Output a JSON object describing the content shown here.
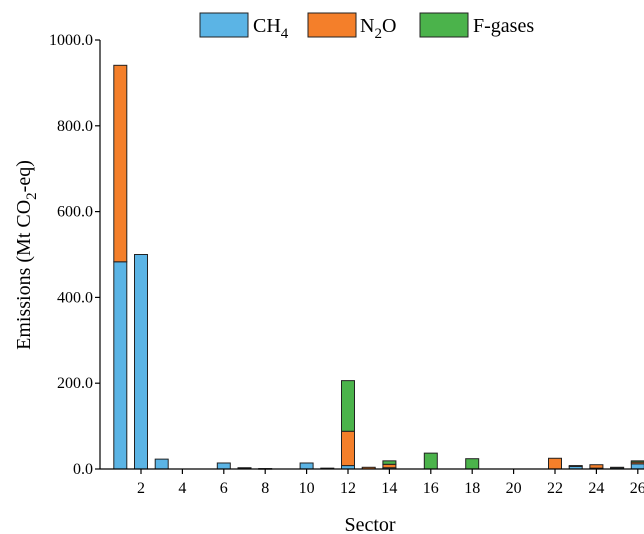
{
  "chart_data": {
    "type": "bar",
    "stacked": true,
    "title": "",
    "xlabel": "Sector",
    "ylabel_parts": [
      "Emissions (Mt CO",
      "2",
      "-eq)"
    ],
    "ylim": [
      0,
      1000
    ],
    "yticks": [
      0,
      200,
      400,
      600,
      800,
      1000
    ],
    "ytick_labels": [
      "0.0",
      "200.0",
      "400.0",
      "600.0",
      "800.0",
      "1000.0"
    ],
    "x_tick_labels": [
      "2",
      "4",
      "6",
      "8",
      "10",
      "12",
      "14",
      "16",
      "18",
      "20",
      "22",
      "24",
      "26"
    ],
    "categories": [
      1,
      2,
      3,
      4,
      5,
      6,
      7,
      8,
      9,
      10,
      11,
      12,
      13,
      14,
      15,
      16,
      17,
      18,
      19,
      20,
      21,
      22,
      23,
      24,
      25,
      26
    ],
    "legend_position": "top",
    "series": [
      {
        "name_parts": [
          "CH",
          "4",
          ""
        ],
        "color": "#5bb4e5",
        "values": [
          483,
          500,
          23,
          0,
          0,
          14,
          2,
          1,
          0,
          14,
          0,
          8,
          0,
          3,
          0,
          0,
          0,
          0,
          0,
          0,
          0,
          0,
          6,
          2,
          3,
          12
        ]
      },
      {
        "name_parts": [
          "N",
          "2",
          "O"
        ],
        "color": "#f47f2a",
        "values": [
          458,
          0,
          0,
          0,
          0,
          0,
          1,
          0,
          0,
          0,
          2,
          80,
          4,
          8,
          0,
          0,
          0,
          0,
          0,
          0,
          0,
          25,
          2,
          8,
          1,
          4
        ]
      },
      {
        "name_parts": [
          "F-gases",
          "",
          ""
        ],
        "color": "#4bb34b",
        "values": [
          0,
          0,
          0,
          0,
          0,
          0,
          0,
          0,
          0,
          0,
          0,
          118,
          0,
          8,
          0,
          37,
          0,
          24,
          0,
          0,
          0,
          0,
          0,
          0,
          0,
          3
        ]
      }
    ]
  }
}
